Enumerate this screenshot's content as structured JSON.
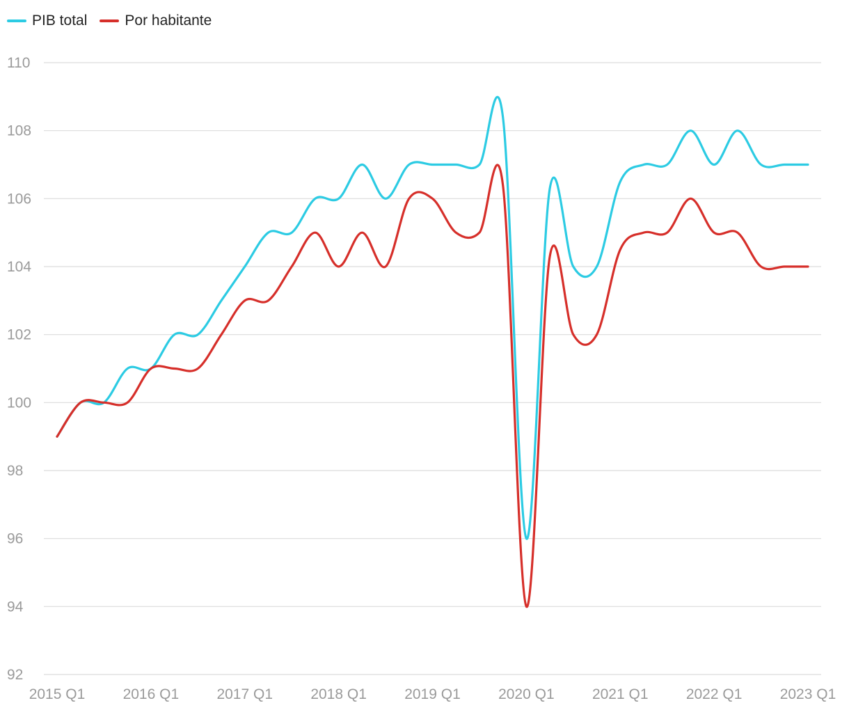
{
  "chart_data": {
    "type": "line",
    "title": "",
    "xlabel": "",
    "ylabel": "",
    "x": [
      "2015 Q1",
      "2015 Q2",
      "2015 Q3",
      "2015 Q4",
      "2016 Q1",
      "2016 Q2",
      "2016 Q3",
      "2016 Q4",
      "2017 Q1",
      "2017 Q2",
      "2017 Q3",
      "2017 Q4",
      "2018 Q1",
      "2018 Q2",
      "2018 Q3",
      "2018 Q4",
      "2019 Q1",
      "2019 Q2",
      "2019 Q3",
      "2019 Q4",
      "2020 Q1",
      "2020 Q2",
      "2020 Q3",
      "2020 Q4",
      "2021 Q1",
      "2021 Q2",
      "2021 Q3",
      "2021 Q4",
      "2022 Q1",
      "2022 Q2",
      "2022 Q3",
      "2022 Q4",
      "2023 Q1"
    ],
    "xticks": [
      "2015 Q1",
      "2016 Q1",
      "2017 Q1",
      "2018 Q1",
      "2019 Q1",
      "2020 Q1",
      "2021 Q1",
      "2022 Q1",
      "2023 Q1"
    ],
    "yticks": [
      "92",
      "94",
      "96",
      "98",
      "100",
      "102",
      "104",
      "106",
      "108",
      "110"
    ],
    "ylim": [
      92,
      110
    ],
    "grid": true,
    "legend_position": "top-left",
    "series": [
      {
        "name": "PIB total",
        "color": "#2ccbe3",
        "values": [
          99,
          100,
          100,
          101,
          101,
          102,
          102,
          103,
          104,
          105,
          105,
          106,
          106,
          107,
          106,
          107,
          107,
          107,
          107,
          108.4,
          96,
          106.3,
          104,
          104,
          106.5,
          107,
          107,
          108,
          107,
          108,
          107,
          107,
          107
        ]
      },
      {
        "name": "Por habitante",
        "color": "#d62f2a",
        "values": [
          99,
          100,
          100,
          100,
          101,
          101,
          101,
          102,
          103,
          103,
          104,
          105,
          104,
          105,
          104,
          106,
          106,
          105,
          105,
          106.4,
          94,
          104.3,
          102,
          102,
          104.5,
          105,
          105,
          106,
          105,
          105,
          104,
          104,
          104
        ]
      }
    ]
  }
}
